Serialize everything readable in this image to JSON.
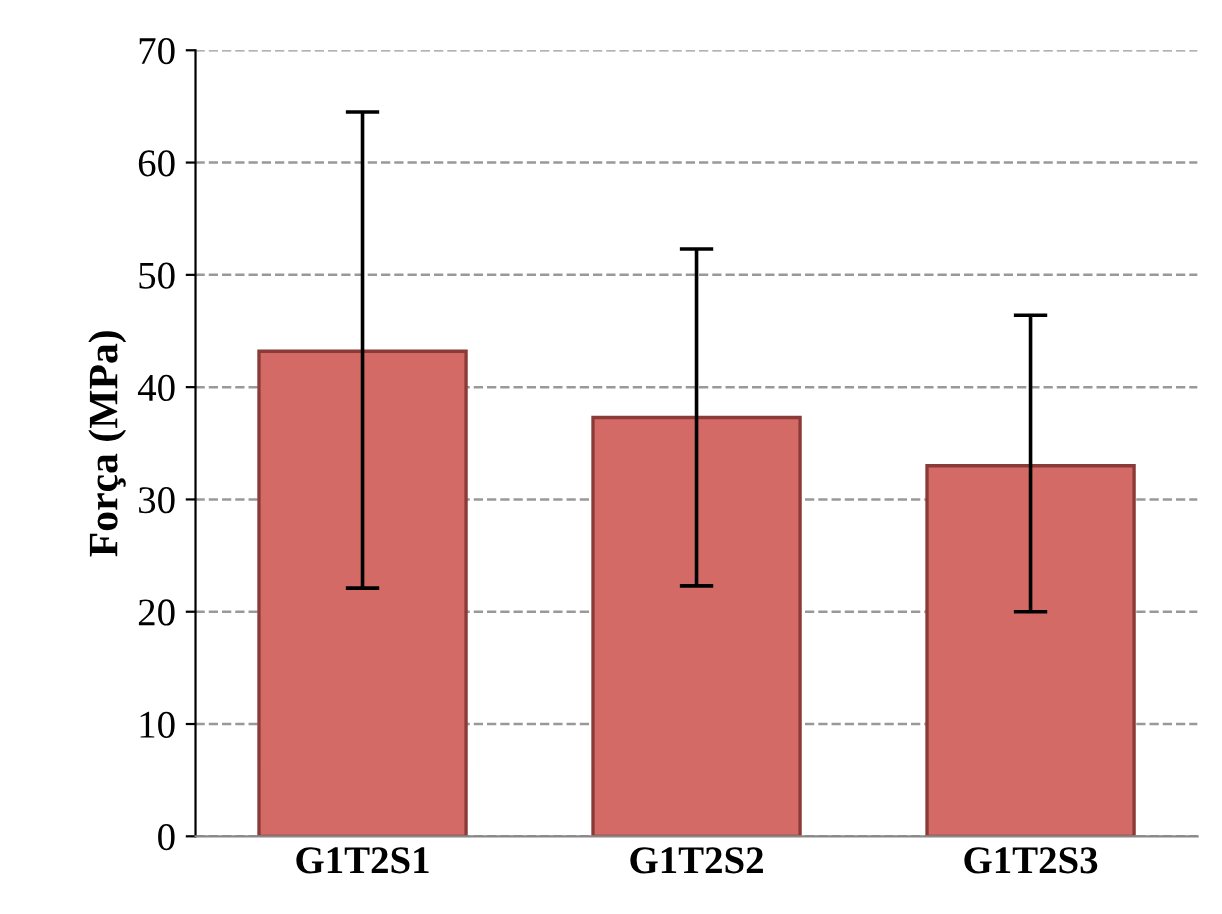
{
  "chart_data": {
    "type": "bar",
    "ylabel": "Força (MPa)",
    "categories": [
      "G1T2S1",
      "G1T2S2",
      "G1T2S3"
    ],
    "values": [
      43.2,
      37.3,
      33.0
    ],
    "errors": [
      [
        22.1,
        64.5
      ],
      [
        22.3,
        52.3
      ],
      [
        20.0,
        46.4
      ]
    ],
    "color": "#d46a66",
    "ylim": [
      0,
      70
    ],
    "yticks": [
      0,
      10,
      20,
      30,
      40,
      50,
      60,
      70
    ],
    "grid": "y"
  }
}
